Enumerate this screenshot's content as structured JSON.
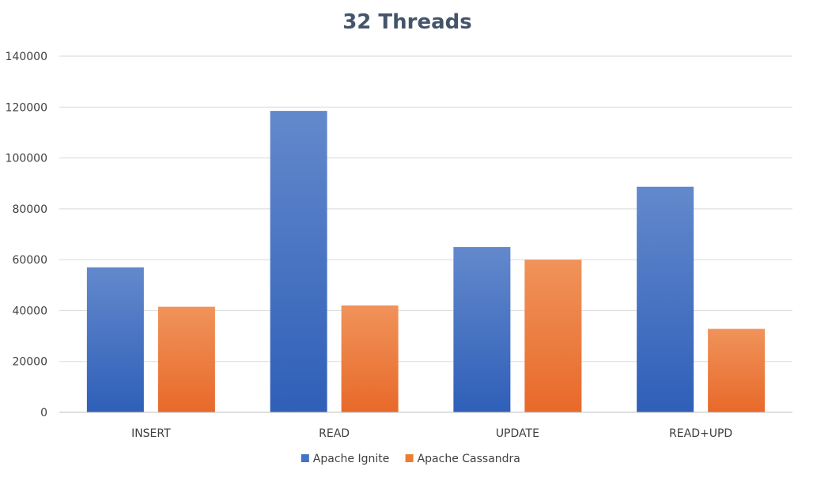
{
  "chart_data": {
    "type": "bar",
    "title": "32 Threads",
    "xlabel": "",
    "ylabel": "",
    "categories": [
      "INSERT",
      "READ",
      "UPDATE",
      "READ+UPD"
    ],
    "series": [
      {
        "name": "Apache Ignite",
        "values": [
          57000,
          118500,
          65000,
          88700
        ],
        "color": "#4472c4"
      },
      {
        "name": "Apache Cassandra",
        "values": [
          41500,
          42000,
          60000,
          32800
        ],
        "color": "#ed7d31"
      }
    ],
    "ylim": [
      0,
      140000
    ],
    "yticks": [
      "0",
      "20000",
      "40000",
      "60000",
      "80000",
      "100000",
      "120000",
      "140000"
    ],
    "grid": true,
    "legend": "bottom"
  }
}
